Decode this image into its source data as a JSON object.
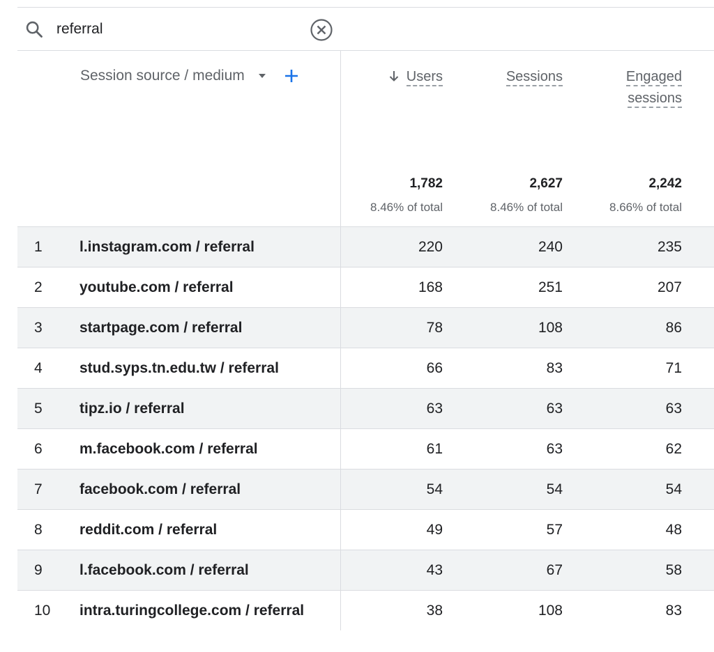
{
  "search": {
    "value": "referral"
  },
  "table": {
    "dimension_header": "Session source / medium",
    "metrics": {
      "users": {
        "label": "Users",
        "total": "1,782",
        "pct": "8.46% of total"
      },
      "sessions": {
        "label": "Sessions",
        "total": "2,627",
        "pct": "8.46% of total"
      },
      "engaged": {
        "label_line1": "Engaged",
        "label_line2": "sessions",
        "total": "2,242",
        "pct": "8.66% of total"
      }
    },
    "rows": [
      {
        "index": "1",
        "source": "l.instagram.com / referral",
        "users": "220",
        "sessions": "240",
        "engaged": "235"
      },
      {
        "index": "2",
        "source": "youtube.com / referral",
        "users": "168",
        "sessions": "251",
        "engaged": "207"
      },
      {
        "index": "3",
        "source": "startpage.com / referral",
        "users": "78",
        "sessions": "108",
        "engaged": "86"
      },
      {
        "index": "4",
        "source": "stud.syps.tn.edu.tw / referral",
        "users": "66",
        "sessions": "83",
        "engaged": "71"
      },
      {
        "index": "5",
        "source": "tipz.io / referral",
        "users": "63",
        "sessions": "63",
        "engaged": "63"
      },
      {
        "index": "6",
        "source": "m.facebook.com / referral",
        "users": "61",
        "sessions": "63",
        "engaged": "62"
      },
      {
        "index": "7",
        "source": "facebook.com / referral",
        "users": "54",
        "sessions": "54",
        "engaged": "54"
      },
      {
        "index": "8",
        "source": "reddit.com / referral",
        "users": "49",
        "sessions": "57",
        "engaged": "48"
      },
      {
        "index": "9",
        "source": "l.facebook.com / referral",
        "users": "43",
        "sessions": "67",
        "engaged": "58"
      },
      {
        "index": "10",
        "source": "intra.turingcollege.com / referral",
        "users": "38",
        "sessions": "108",
        "engaged": "83"
      }
    ]
  },
  "icons": {
    "search": "search-icon",
    "clear": "close-circle-icon",
    "caret": "caret-down-icon",
    "add": "plus-icon",
    "sort": "arrow-down-icon"
  },
  "colors": {
    "accent": "#1a73e8",
    "row_shade": "#f1f3f4",
    "divider": "#dadce0",
    "muted_text": "#5f6368"
  }
}
